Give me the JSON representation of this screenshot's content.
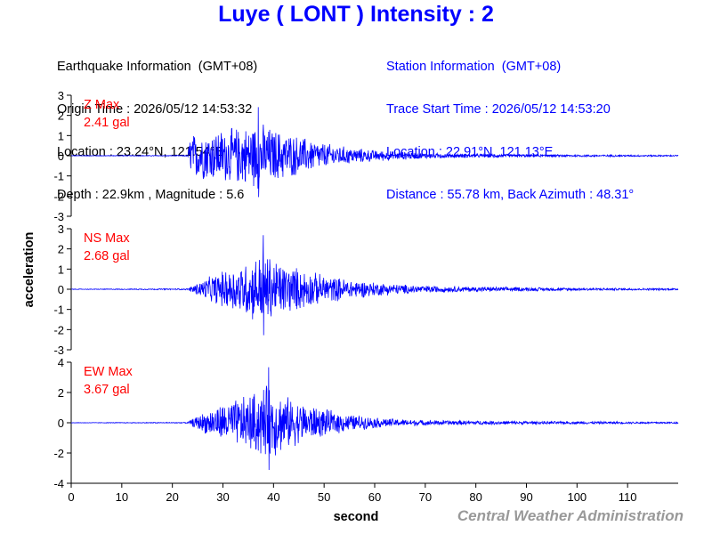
{
  "header": {
    "title": "Luye ( LONT ) Intensity : 2"
  },
  "earthquake_info": {
    "heading": "Earthquake Information  (GMT+08)",
    "origin_time": "Origin Time : 2026/05/12 14:53:32",
    "location": "Location : 23.24°N, 121.54°E",
    "depth_magnitude": "Depth : 22.9km , Magnitude : 5.6"
  },
  "station_info": {
    "heading": "Station Information  (GMT+08)",
    "trace_start": "Trace Start Time : 2026/05/12 14:53:20",
    "location": "Location : 22.91°N, 121.13°E",
    "distance_azimuth": "Distance : 55.78 km, Back Azimuth : 48.31°"
  },
  "footer": {
    "credit": "Central Weather Administration"
  },
  "colors": {
    "title": "#0000ff",
    "trace": "#0000ff",
    "max_label": "#ff0000",
    "credit": "#999999",
    "axis": "#000000"
  },
  "chart_data": {
    "type": "line",
    "xlabel": "second",
    "ylabel": "acceleration",
    "xlim": [
      0,
      120
    ],
    "xticks": [
      0,
      10,
      20,
      30,
      40,
      50,
      60,
      70,
      80,
      90,
      100,
      110
    ],
    "grid": false,
    "panels": [
      {
        "component": "Z",
        "max_label": "Z Max",
        "max_value": "2.41 gal",
        "peak": 2.41,
        "ylim": [
          -3,
          3
        ],
        "yticks": [
          3,
          2,
          1,
          0,
          -1,
          -2,
          -3
        ],
        "envelope": [
          [
            0,
            0.02
          ],
          [
            23,
            0.03
          ],
          [
            23.5,
            1.5
          ],
          [
            26,
            1.7
          ],
          [
            30,
            1.9
          ],
          [
            35,
            2.1
          ],
          [
            37,
            2.41
          ],
          [
            40,
            1.9
          ],
          [
            45,
            1.4
          ],
          [
            50,
            0.9
          ],
          [
            55,
            0.6
          ],
          [
            60,
            0.4
          ],
          [
            65,
            0.3
          ],
          [
            70,
            0.2
          ],
          [
            80,
            0.14
          ],
          [
            90,
            0.1
          ],
          [
            100,
            0.08
          ],
          [
            110,
            0.06
          ],
          [
            120,
            0.05
          ]
        ]
      },
      {
        "component": "NS",
        "max_label": "NS Max",
        "max_value": "2.68 gal",
        "peak": 2.68,
        "ylim": [
          -3,
          3
        ],
        "yticks": [
          3,
          2,
          1,
          0,
          -1,
          -2,
          -3
        ],
        "envelope": [
          [
            0,
            0.02
          ],
          [
            23,
            0.05
          ],
          [
            25,
            0.5
          ],
          [
            30,
            1.3
          ],
          [
            35,
            2.0
          ],
          [
            38,
            2.68
          ],
          [
            41,
            2.0
          ],
          [
            45,
            1.5
          ],
          [
            50,
            1.0
          ],
          [
            55,
            0.7
          ],
          [
            60,
            0.5
          ],
          [
            65,
            0.35
          ],
          [
            70,
            0.25
          ],
          [
            80,
            0.18
          ],
          [
            90,
            0.14
          ],
          [
            100,
            0.1
          ],
          [
            110,
            0.08
          ],
          [
            120,
            0.07
          ]
        ]
      },
      {
        "component": "EW",
        "max_label": "EW Max",
        "max_value": "3.67 gal",
        "peak": 3.67,
        "ylim": [
          -4,
          4
        ],
        "yticks": [
          4,
          2,
          0,
          -2,
          -4
        ],
        "envelope": [
          [
            0,
            0.02
          ],
          [
            23,
            0.05
          ],
          [
            25,
            0.7
          ],
          [
            30,
            1.8
          ],
          [
            35,
            2.6
          ],
          [
            39,
            3.67
          ],
          [
            42,
            2.6
          ],
          [
            45,
            2.0
          ],
          [
            50,
            1.3
          ],
          [
            55,
            0.8
          ],
          [
            60,
            0.5
          ],
          [
            65,
            0.35
          ],
          [
            70,
            0.25
          ],
          [
            80,
            0.2
          ],
          [
            90,
            0.15
          ],
          [
            100,
            0.12
          ],
          [
            110,
            0.1
          ],
          [
            120,
            0.08
          ]
        ]
      }
    ]
  }
}
